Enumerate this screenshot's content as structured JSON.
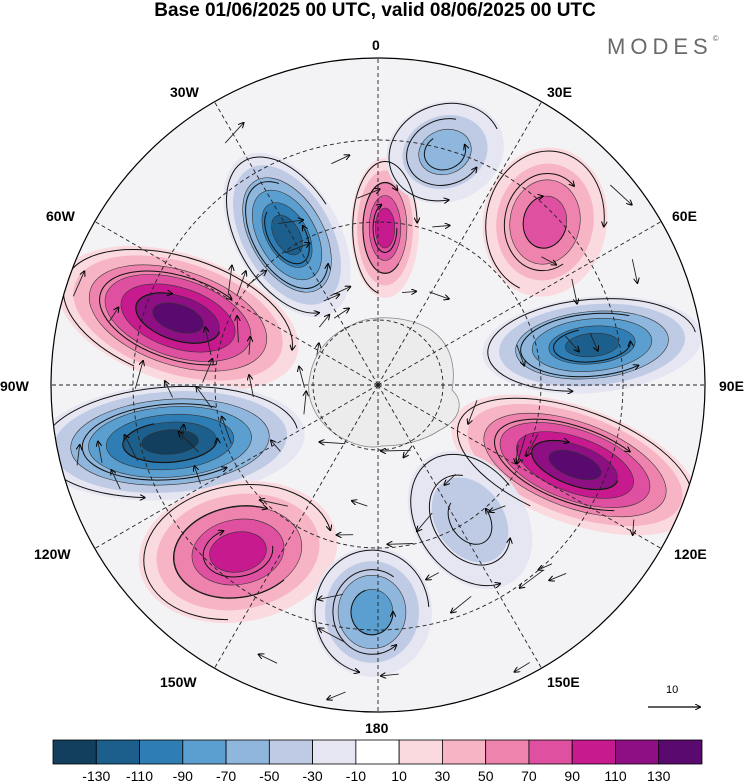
{
  "title": "Base 01/06/2025 00 UTC, valid 08/06/2025 00 UTC",
  "brand": "MODES",
  "brand_mark": "©",
  "longitude_labels": {
    "l0": "0",
    "l30e": "30E",
    "l60e": "60E",
    "l90e": "90E",
    "l120e": "120E",
    "l150e": "150E",
    "l180": "180",
    "l150w": "150W",
    "l120w": "120W",
    "l90w": "90W",
    "l60w": "60W",
    "l30w": "30W"
  },
  "reference_vector": {
    "value": "10"
  },
  "colorbar": {
    "colors": [
      "#123f5e",
      "#1c5f8c",
      "#2f7db5",
      "#5a9fcf",
      "#8fb6dc",
      "#bfcbe5",
      "#e6e6f2",
      "#ffffff",
      "#fbdadf",
      "#f6b4c5",
      "#ee83ad",
      "#e050a0",
      "#c71a8f",
      "#8e0f84",
      "#5a0a6e"
    ],
    "tick_labels": [
      "-130",
      "-110",
      "-90",
      "-70",
      "-50",
      "-30",
      "-10",
      "10",
      "30",
      "50",
      "70",
      "90",
      "110",
      "130"
    ]
  },
  "anomaly_centers": [
    {
      "name": "neg-0",
      "sign": "neg",
      "level": 6
    },
    {
      "name": "pos-1",
      "sign": "pos",
      "level": 7
    },
    {
      "name": "neg-2",
      "sign": "neg",
      "level": 7
    },
    {
      "name": "pos-3",
      "sign": "pos",
      "level": 5
    },
    {
      "name": "neg-4",
      "sign": "neg",
      "level": 4
    },
    {
      "name": "pos-5",
      "sign": "pos",
      "level": 5
    },
    {
      "name": "neg-6",
      "sign": "neg",
      "level": 3
    },
    {
      "name": "neg-7",
      "sign": "neg",
      "level": 6
    },
    {
      "name": "pos-8",
      "sign": "pos",
      "level": 7
    },
    {
      "name": "pos-9",
      "sign": "pos",
      "level": 4
    },
    {
      "name": "neg-10",
      "sign": "neg",
      "level": 2
    }
  ]
}
